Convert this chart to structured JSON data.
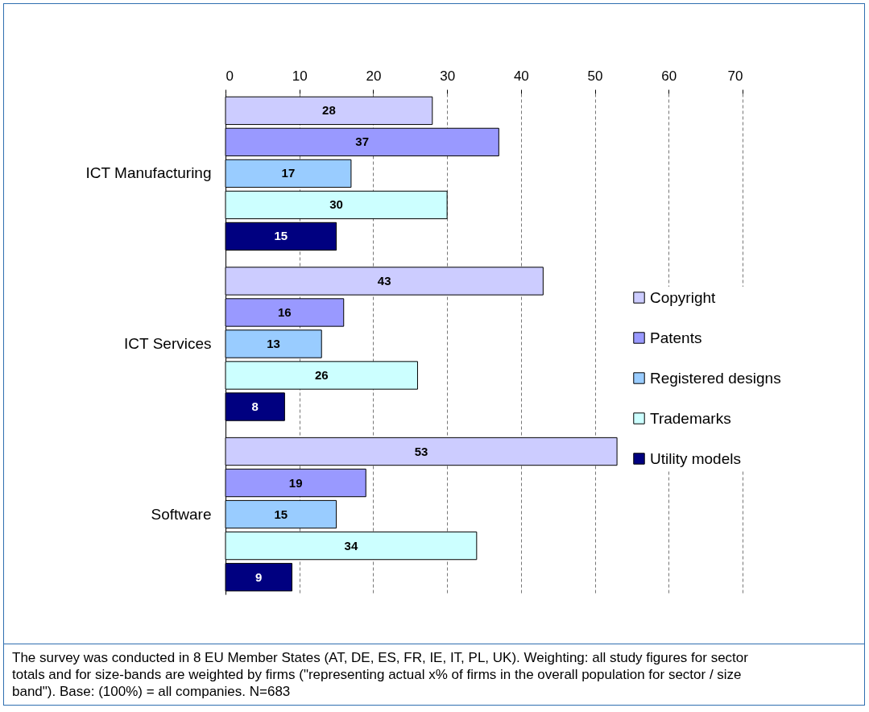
{
  "chart_data": {
    "type": "bar",
    "orientation": "horizontal",
    "categories": [
      "ICT Manufacturing",
      "ICT Services",
      "Software"
    ],
    "series": [
      {
        "name": "Copyright",
        "color": "#ccccff",
        "values": [
          28,
          43,
          53
        ]
      },
      {
        "name": "Patents",
        "color": "#9999ff",
        "values": [
          37,
          16,
          19
        ]
      },
      {
        "name": "Registered designs",
        "color": "#99ccff",
        "values": [
          17,
          13,
          15
        ]
      },
      {
        "name": "Trademarks",
        "color": "#ccffff",
        "values": [
          30,
          26,
          34
        ]
      },
      {
        "name": "Utility models",
        "color": "#000080",
        "values": [
          15,
          8,
          9
        ]
      }
    ],
    "xlim": [
      0,
      70
    ],
    "xticks": [
      0,
      10,
      20,
      30,
      40,
      50,
      60,
      70
    ],
    "grid": "x",
    "legend": "right",
    "data_labels": true,
    "annotations": [
      "The survey was conducted in 8 EU Member States (AT, DE, ES, FR, IE, IT, PL, UK). Weighting: all study figures for sector totals and for size-bands are weighted by firms (\"representing actual x% of firms in the overall population for sector / size band\").  Base: (100%) = all companies. N=683"
    ]
  }
}
